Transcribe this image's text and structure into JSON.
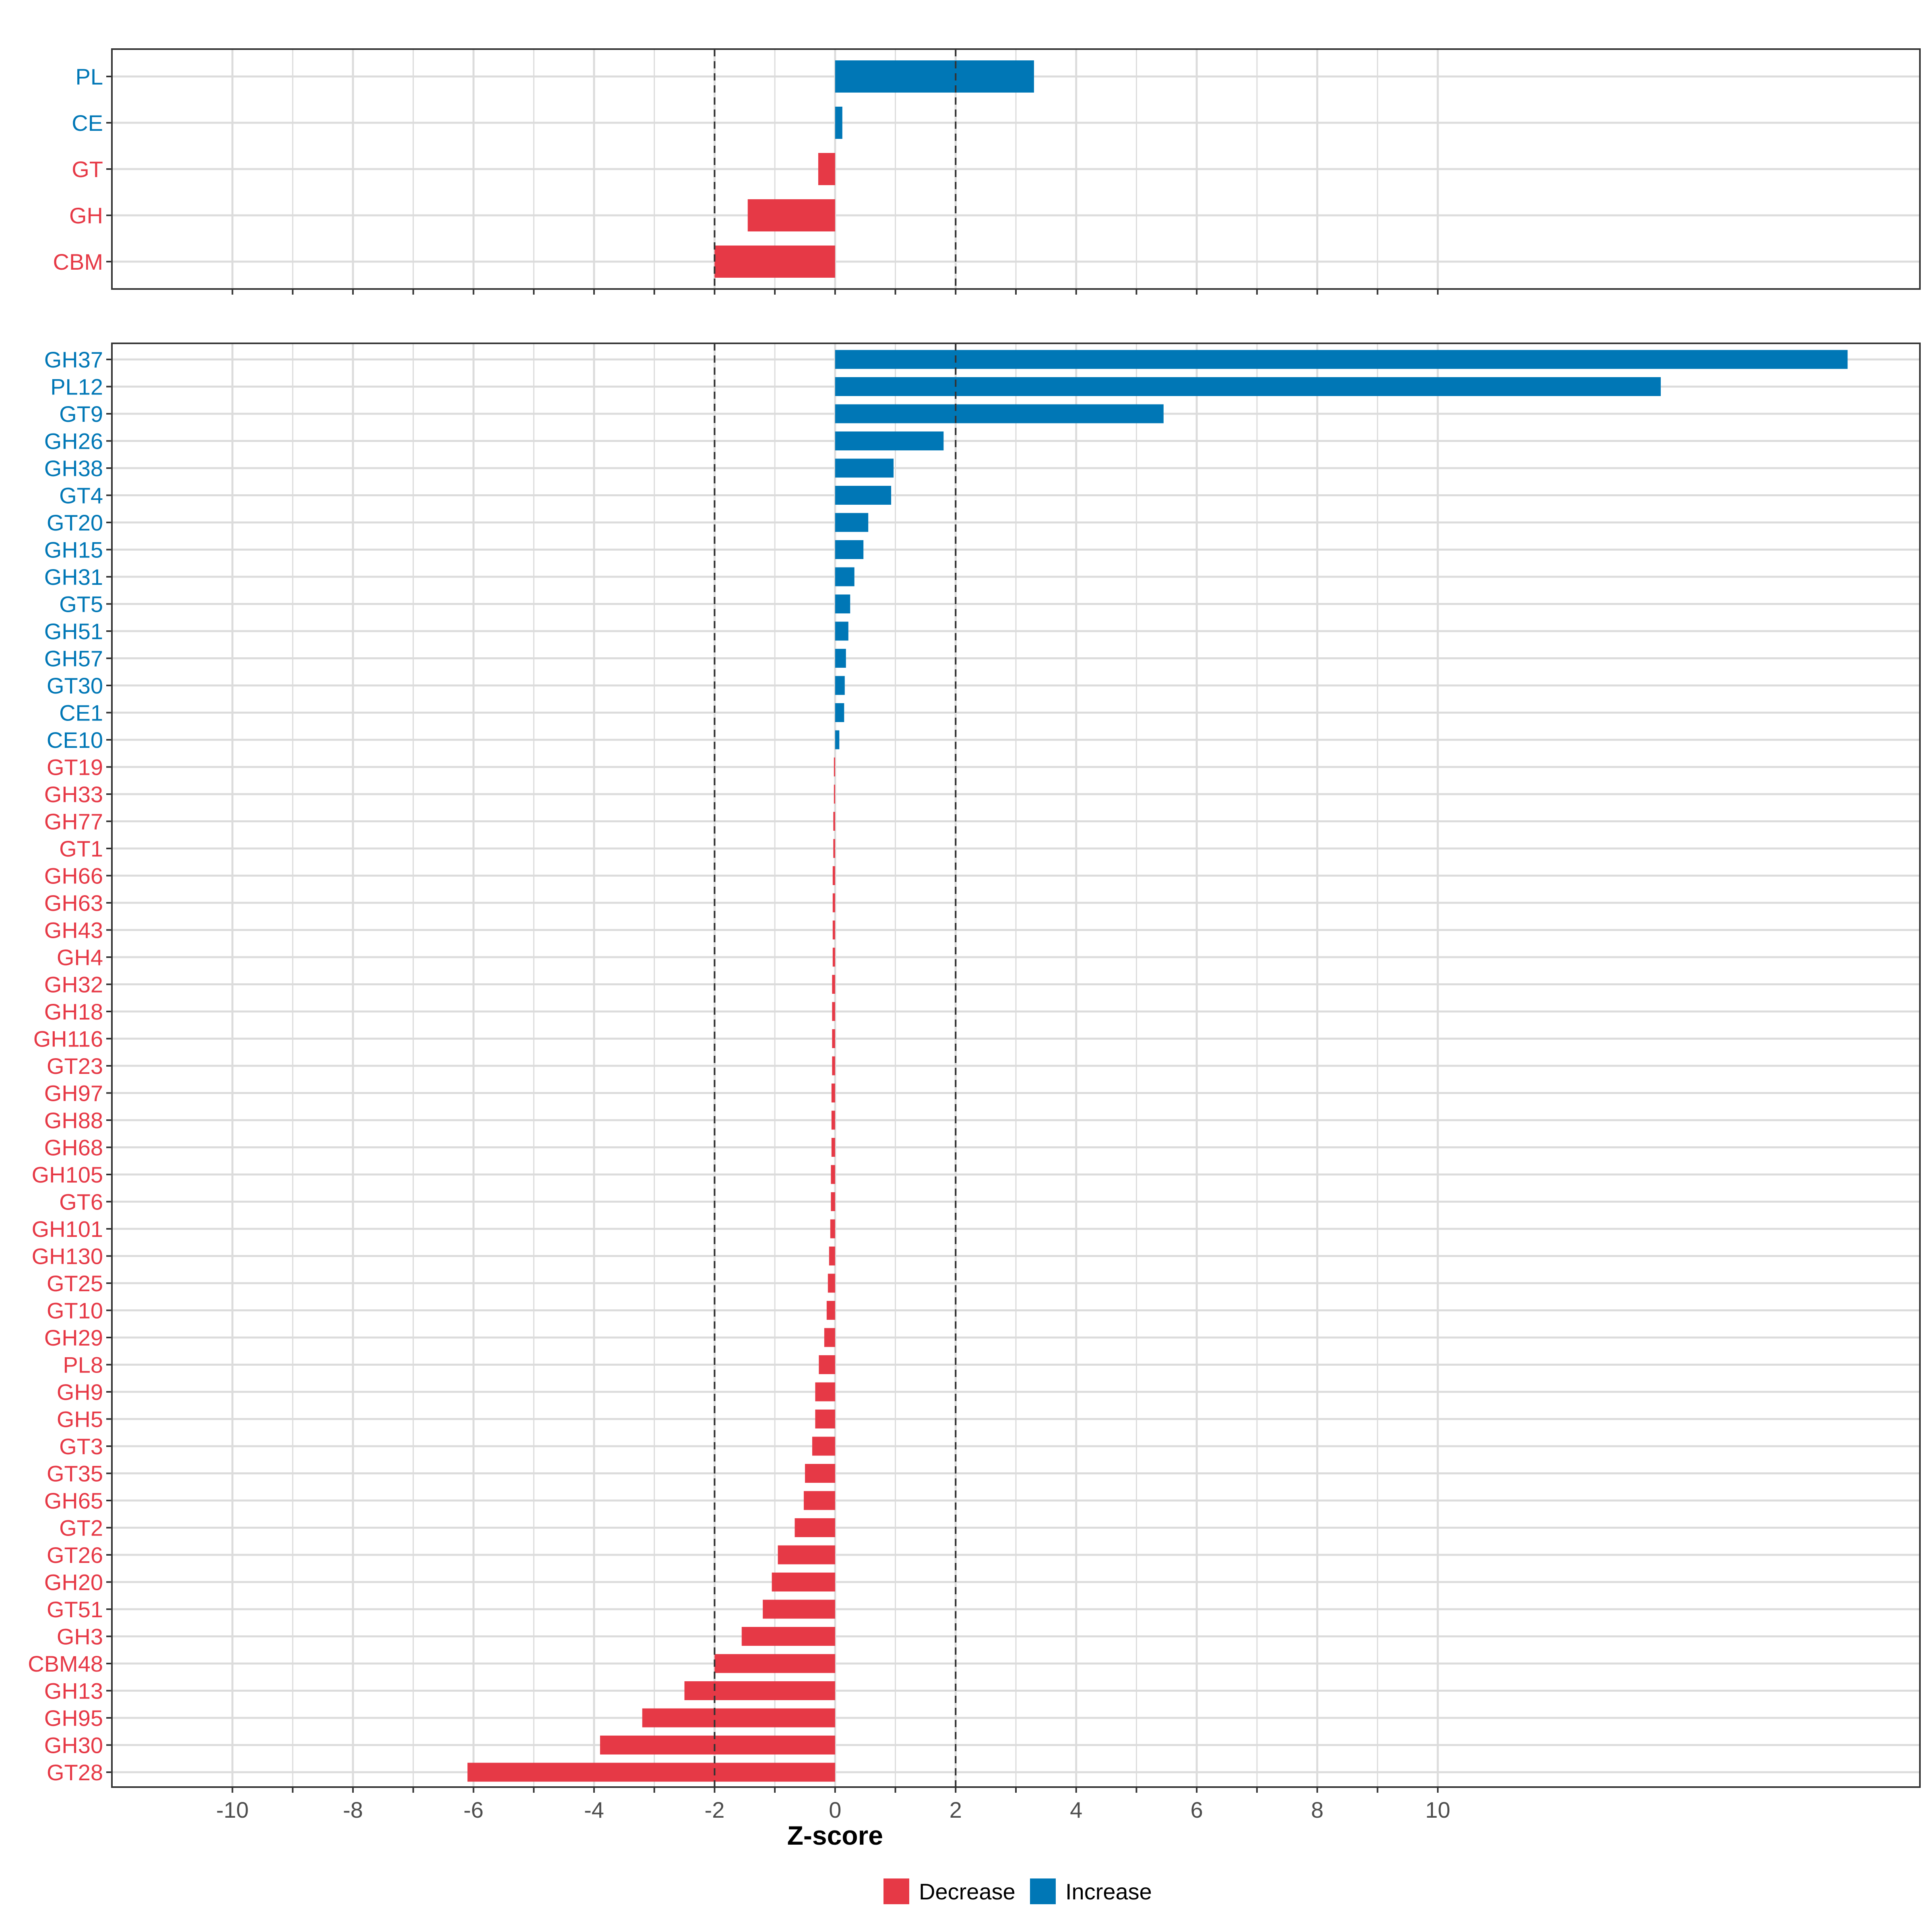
{
  "chart_data": {
    "type": "bar",
    "orientation": "horizontal",
    "xlabel": "Z-score",
    "xlim": [
      -12,
      18
    ],
    "x_ticks": [
      -10,
      -8,
      -6,
      -4,
      -2,
      0,
      2,
      4,
      6,
      8,
      10
    ],
    "x_tick_labels": [
      "-10",
      "-8",
      "-6",
      "-4",
      "-2",
      "0",
      "2",
      "4",
      "6",
      "8",
      "10"
    ],
    "reference_lines": [
      -2,
      2
    ],
    "grid": true,
    "legend": {
      "placement": "bottom",
      "entries": [
        {
          "label": "Decrease",
          "color": "#E63946"
        },
        {
          "label": "Increase",
          "color": "#0077B6"
        }
      ]
    },
    "colors": {
      "increase": "#0077B6",
      "decrease": "#E63946",
      "grid": "#dcdcdc",
      "reference": "#333333"
    },
    "panels": [
      {
        "name": "family-classes",
        "categories": [
          "PL",
          "CE",
          "GT",
          "GH",
          "CBM"
        ],
        "values": [
          3.3,
          0.12,
          -0.28,
          -1.45,
          -2.0
        ]
      },
      {
        "name": "families",
        "categories": [
          "GH37",
          "PL12",
          "GT9",
          "GH26",
          "GH38",
          "GT4",
          "GT20",
          "GH15",
          "GH31",
          "GT5",
          "GH51",
          "GH57",
          "GT30",
          "CE1",
          "CE10",
          "GT19",
          "GH33",
          "GH77",
          "GT1",
          "GH66",
          "GH63",
          "GH43",
          "GH4",
          "GH32",
          "GH18",
          "GH116",
          "GT23",
          "GH97",
          "GH88",
          "GH68",
          "GH105",
          "GT6",
          "GH101",
          "GH130",
          "GT25",
          "GT10",
          "GH29",
          "PL8",
          "GH9",
          "GH5",
          "GT3",
          "GT35",
          "GH65",
          "GT2",
          "GT26",
          "GH20",
          "GT51",
          "GH3",
          "CBM48",
          "GH13",
          "GH95",
          "GH30",
          "GT28"
        ],
        "values": [
          16.8,
          13.7,
          5.45,
          1.8,
          0.97,
          0.93,
          0.55,
          0.47,
          0.32,
          0.25,
          0.22,
          0.18,
          0.16,
          0.15,
          0.07,
          -0.02,
          -0.02,
          -0.03,
          -0.03,
          -0.04,
          -0.04,
          -0.04,
          -0.04,
          -0.05,
          -0.05,
          -0.05,
          -0.05,
          -0.06,
          -0.06,
          -0.06,
          -0.07,
          -0.07,
          -0.08,
          -0.1,
          -0.12,
          -0.14,
          -0.18,
          -0.27,
          -0.33,
          -0.33,
          -0.38,
          -0.5,
          -0.52,
          -0.67,
          -0.95,
          -1.05,
          -1.2,
          -1.55,
          -2.0,
          -2.5,
          -3.2,
          -3.9,
          -6.1
        ]
      }
    ]
  }
}
